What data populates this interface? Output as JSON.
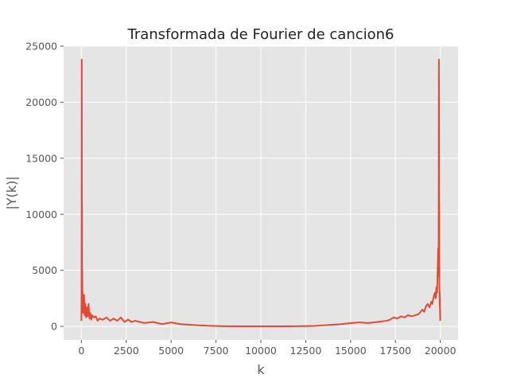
{
  "chart_data": {
    "type": "line",
    "title": "Transformada de Fourier de cancion6",
    "xlabel": "k",
    "ylabel": "|Y(k)|",
    "xlim": [
      -990,
      20990
    ],
    "ylim": [
      -1200,
      25000
    ],
    "x_ticks": [
      0,
      2500,
      5000,
      7500,
      10000,
      12500,
      15000,
      17500,
      20000
    ],
    "y_ticks": [
      0,
      5000,
      10000,
      15000,
      20000,
      25000
    ],
    "x_tick_labels": [
      "0",
      "2500",
      "5000",
      "7500",
      "10000",
      "12500",
      "15000",
      "17500",
      "20000"
    ],
    "y_tick_labels": [
      "0",
      "5000",
      "10000",
      "15000",
      "20000",
      "25000"
    ],
    "grid": true,
    "legend": "none",
    "background_color": "#e5e5e5",
    "grid_color": "#ffffff",
    "series": [
      {
        "color": "#e24a33",
        "x": [
          0,
          5,
          10,
          15,
          20,
          25,
          30,
          35,
          40,
          45,
          50,
          55,
          60,
          70,
          80,
          90,
          100,
          120,
          150,
          180,
          220,
          260,
          300,
          350,
          400,
          450,
          500,
          550,
          600,
          700,
          800,
          900,
          1000,
          1200,
          1400,
          1600,
          1800,
          2000,
          2200,
          2400,
          2600,
          2800,
          3000,
          3500,
          4000,
          4500,
          5000,
          5500,
          6000,
          6500,
          7000,
          8000,
          9000,
          10000,
          11000,
          12000,
          13000,
          13500,
          14000,
          14500,
          15000,
          15500,
          16000,
          16500,
          17000,
          17200,
          17400,
          17600,
          17800,
          18000,
          18200,
          18400,
          18600,
          18800,
          19000,
          19100,
          19200,
          19300,
          19400,
          19500,
          19550,
          19600,
          19650,
          19700,
          19740,
          19780,
          19820,
          19850,
          19880,
          19900,
          19910,
          19920,
          19930,
          19940,
          19945,
          19950,
          19955,
          19960,
          19965,
          19970,
          19975,
          19980,
          19985,
          19990,
          19995
        ],
        "y": [
          500,
          1500,
          4000,
          11500,
          23800,
          19000,
          7500,
          11000,
          3500,
          2000,
          5000,
          2500,
          3200,
          1500,
          2800,
          1200,
          2500,
          1600,
          2800,
          1000,
          2000,
          800,
          1700,
          900,
          2000,
          700,
          1200,
          600,
          1000,
          800,
          900,
          500,
          700,
          600,
          800,
          500,
          700,
          500,
          800,
          400,
          600,
          400,
          500,
          300,
          400,
          200,
          350,
          200,
          150,
          100,
          60,
          20,
          10,
          5,
          10,
          20,
          40,
          100,
          150,
          200,
          300,
          350,
          300,
          400,
          500,
          600,
          800,
          700,
          900,
          800,
          1000,
          900,
          1000,
          1100,
          1500,
          1300,
          1800,
          2000,
          1700,
          2200,
          2000,
          2400,
          2800,
          3000,
          2500,
          3500,
          3000,
          5000,
          7000,
          4500,
          11500,
          23800,
          19000,
          7500,
          11000,
          4000,
          3500,
          2500,
          2000,
          3000,
          1500,
          2500,
          1000,
          1500,
          500
        ]
      }
    ]
  }
}
